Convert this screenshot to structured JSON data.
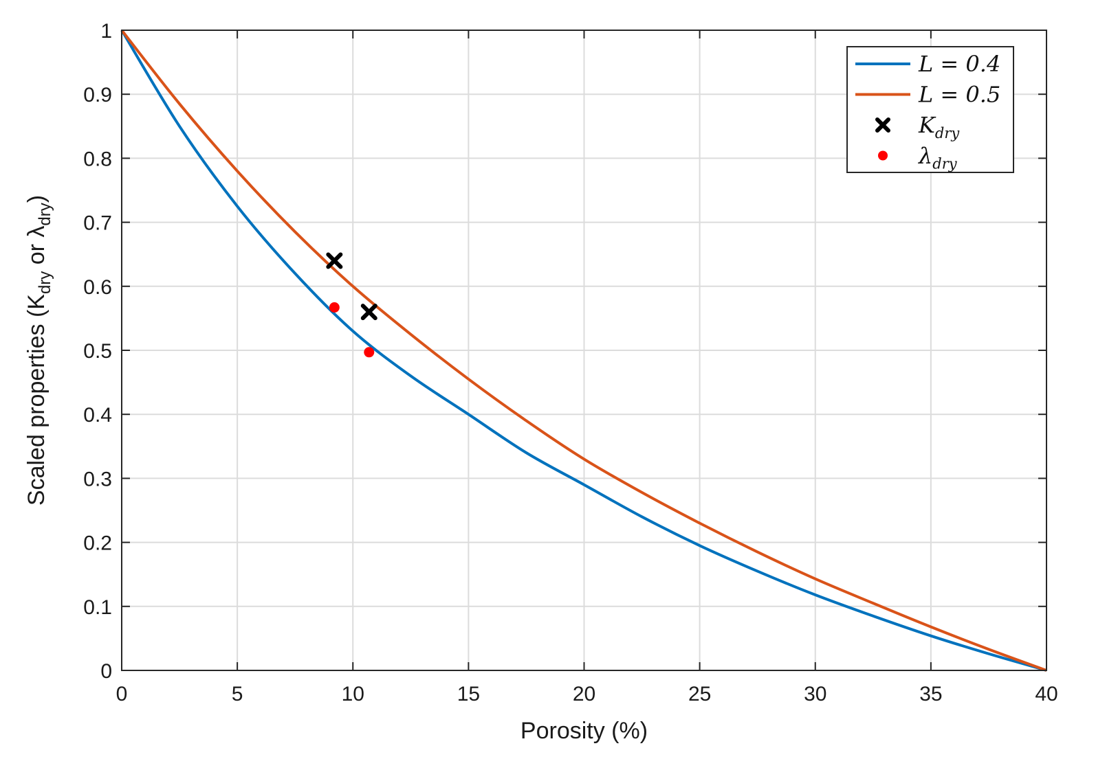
{
  "chart_data": {
    "type": "line",
    "title": "",
    "xlabel": "Porosity (%)",
    "ylabel": {
      "prefix": "Scaled properties (K",
      "sub1": "dry",
      "mid": " or λ",
      "sub2": "dry",
      "suffix": ")"
    },
    "xlim": [
      0,
      40
    ],
    "ylim": [
      0,
      1
    ],
    "xticks": [
      "0",
      "5",
      "10",
      "15",
      "20",
      "25",
      "30",
      "35",
      "40"
    ],
    "yticks": [
      "0",
      "0.1",
      "0.2",
      "0.3",
      "0.4",
      "0.5",
      "0.6",
      "0.7",
      "0.8",
      "0.9",
      "1"
    ],
    "grid": true,
    "legend_position": "top-right",
    "series": [
      {
        "name": "L = 0.4",
        "legend_main": "L = 0.4",
        "kind": "line",
        "color": "#0072BD",
        "x": [
          0,
          2.5,
          5,
          7.5,
          10,
          12.5,
          15,
          17.5,
          20,
          22.5,
          25,
          27.5,
          30,
          32.5,
          35,
          37.5,
          40
        ],
        "y": [
          1.0,
          0.85,
          0.725,
          0.62,
          0.53,
          0.46,
          0.4,
          0.34,
          0.29,
          0.24,
          0.195,
          0.155,
          0.118,
          0.085,
          0.054,
          0.026,
          0.0
        ]
      },
      {
        "name": "L = 0.5",
        "legend_main": "L = 0.5",
        "kind": "line",
        "color": "#D95319",
        "x": [
          0,
          2.5,
          5,
          7.5,
          10,
          12.5,
          15,
          17.5,
          20,
          22.5,
          25,
          27.5,
          30,
          32.5,
          35,
          37.5,
          40
        ],
        "y": [
          1.0,
          0.885,
          0.78,
          0.685,
          0.6,
          0.525,
          0.455,
          0.39,
          0.33,
          0.278,
          0.23,
          0.185,
          0.143,
          0.105,
          0.068,
          0.033,
          0.0
        ]
      },
      {
        "name": "K_dry",
        "legend_main": "K",
        "legend_sub": "dry",
        "kind": "cross",
        "color": "#000000",
        "x": [
          9.2,
          10.7
        ],
        "y": [
          0.64,
          0.56
        ]
      },
      {
        "name": "λ_dry",
        "legend_main": "λ",
        "legend_sub": "dry",
        "kind": "dot",
        "color": "#FF0000",
        "x": [
          9.2,
          10.7
        ],
        "y": [
          0.567,
          0.497
        ]
      }
    ]
  }
}
